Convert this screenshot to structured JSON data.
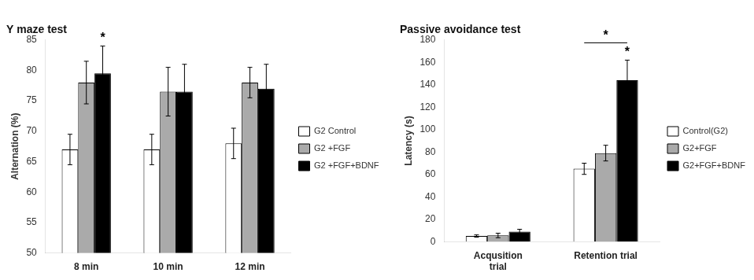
{
  "chart_data": [
    {
      "type": "bar",
      "title": "Y maze test",
      "ylabel": "Alternation (%)",
      "categories": [
        "8 min",
        "10 min",
        "12 min"
      ],
      "series": [
        {
          "name": "G2 Control",
          "color": "white",
          "values": [
            67.0,
            67.0,
            68.0
          ],
          "errors": [
            2.5,
            2.5,
            2.5
          ]
        },
        {
          "name": "G2 +FGF",
          "color": "#aaaaaa",
          "values": [
            78.0,
            76.5,
            78.0
          ],
          "errors": [
            3.5,
            4.0,
            2.5
          ]
        },
        {
          "name": "G2 +FGF+BDNF",
          "color": "black",
          "values": [
            79.5,
            76.5,
            77.0
          ],
          "errors": [
            4.5,
            4.5,
            4.0
          ]
        }
      ],
      "ylim": [
        50,
        85
      ],
      "yticks": [
        50,
        55,
        60,
        65,
        70,
        75,
        80,
        85
      ],
      "grid": false,
      "legend": "right",
      "annotations": [
        {
          "text": "*",
          "category": "8 min",
          "series": "G2 +FGF+BDNF"
        }
      ]
    },
    {
      "type": "bar",
      "title": "Passive avoidance test",
      "ylabel": "Latency (s)",
      "categories": [
        "Acqusition\ntrial",
        "Retention trial"
      ],
      "series": [
        {
          "name": "Control(G2)",
          "color": "white",
          "values": [
            5.0,
            65.0
          ],
          "errors": [
            1.0,
            5.0
          ]
        },
        {
          "name": "G2+FGF",
          "color": "#aaaaaa",
          "values": [
            5.5,
            79.0
          ],
          "errors": [
            2.0,
            7.0
          ]
        },
        {
          "name": "G2+FGF+BDNF",
          "color": "black",
          "values": [
            9.0,
            144.0
          ],
          "errors": [
            2.0,
            18.0
          ]
        }
      ],
      "ylim": [
        0,
        180
      ],
      "yticks": [
        0,
        20,
        40,
        60,
        80,
        100,
        120,
        140,
        160,
        180
      ],
      "grid": false,
      "legend": "right",
      "annotations": [
        {
          "text": "*",
          "category": "Retention trial",
          "series": "G2+FGF+BDNF"
        },
        {
          "text": "*",
          "category": "Retention trial",
          "from_series": "Control(G2)",
          "to_series": "G2+FGF+BDNF"
        }
      ]
    }
  ]
}
